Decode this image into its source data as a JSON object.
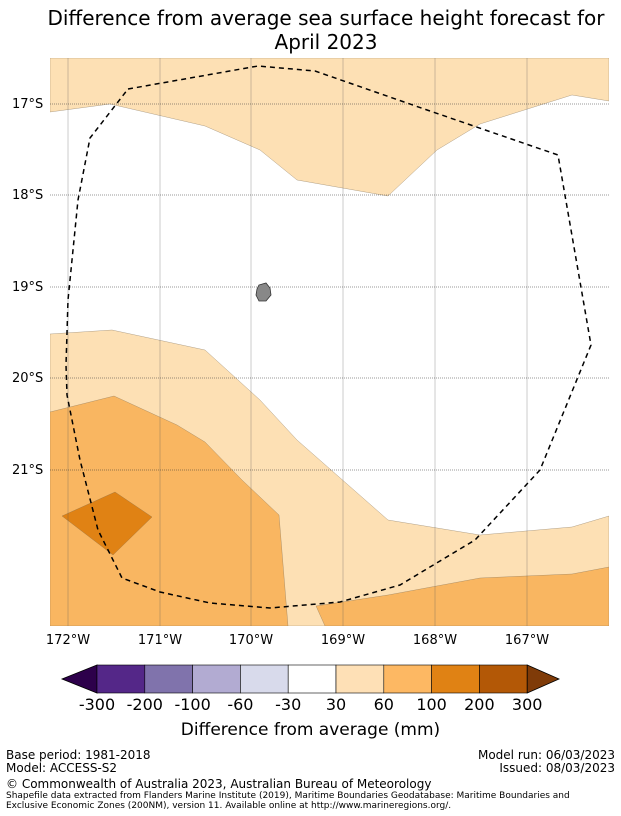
{
  "title": {
    "line1": "Difference from average sea surface height forecast for",
    "line2": "April 2023"
  },
  "map": {
    "lat_labels": [
      "17°S",
      "18°S",
      "19°S",
      "20°S",
      "21°S"
    ],
    "lon_labels": [
      "172°W",
      "171°W",
      "170°W",
      "169°W",
      "168°W",
      "167°W"
    ],
    "colors": {
      "light_orange": "#fde0b4",
      "mid_orange": "#f9b661",
      "dark_orange": "#e08214",
      "island": "#888888",
      "eez_line": "#000000"
    }
  },
  "colorbar": {
    "ticks": [
      "-300",
      "-200",
      "-100",
      "-60",
      "-30",
      "30",
      "60",
      "100",
      "200",
      "300"
    ],
    "colors": [
      "#2d004b",
      "#542788",
      "#8073ac",
      "#b2abd2",
      "#d8daeb",
      "#ffffff",
      "#fee0b6",
      "#fdb863",
      "#e08214",
      "#b35806",
      "#7f3b08"
    ],
    "label": "Difference from average (mm)"
  },
  "footer": {
    "base_period": "Base period: 1981-2018",
    "model": "Model: ACCESS-S2",
    "model_run": "Model run: 06/03/2023",
    "issued": "Issued: 08/03/2023",
    "copyright": "© Commonwealth of Australia 2023, Australian Bureau of Meteorology",
    "shapefile_line1": "Shapefile data extracted from Flanders Marine Institute (2019), Maritime Boundaries Geodatabase: Maritime Boundaries and",
    "shapefile_line2": "Exclusive Economic Zones (200NM), version 11. Available online at http://www.marineregions.org/."
  }
}
